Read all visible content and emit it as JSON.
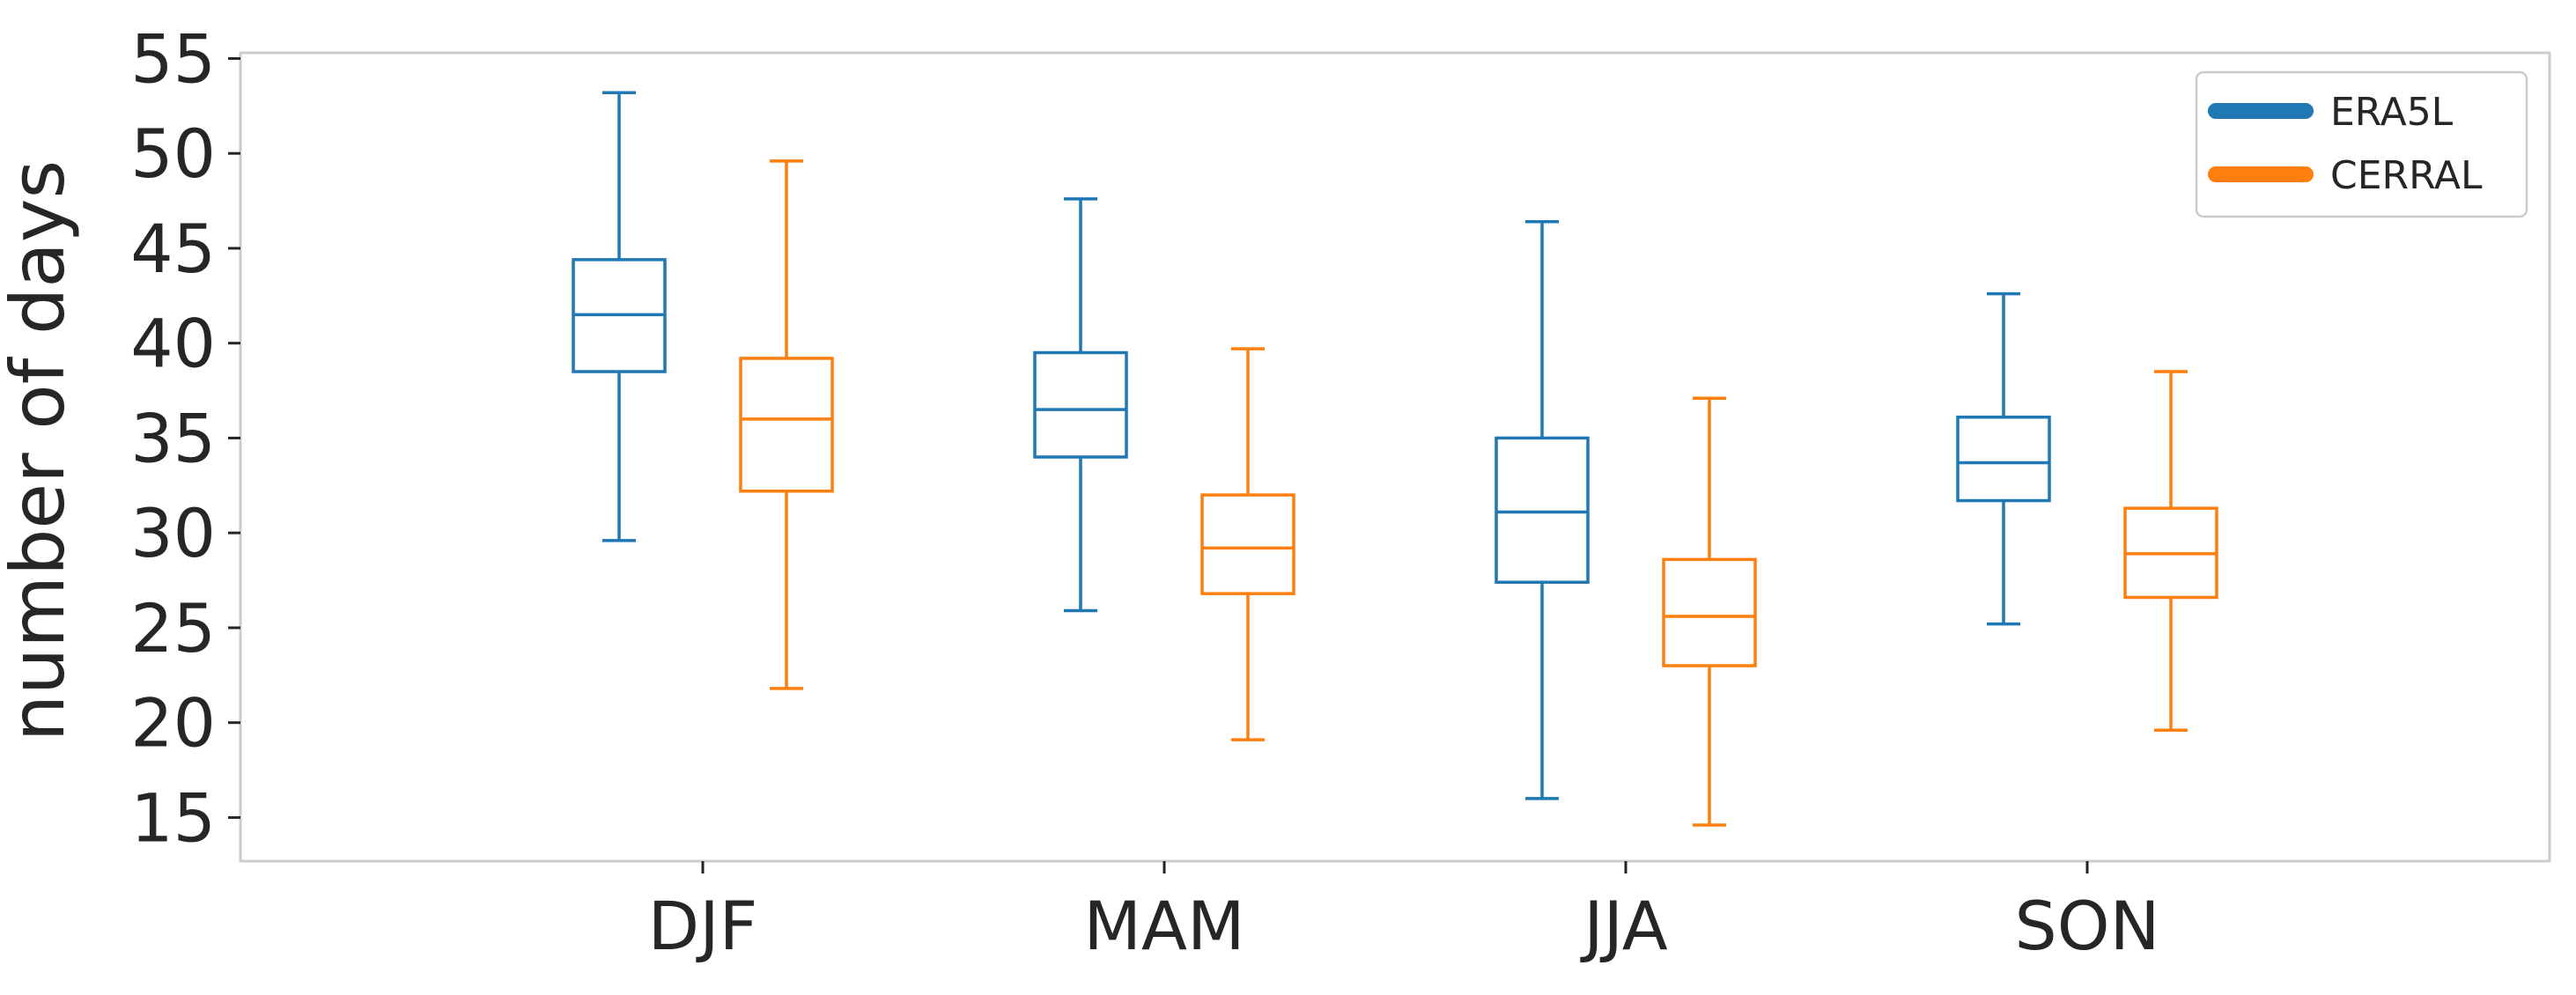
{
  "chart_data": {
    "type": "boxplot",
    "title": "",
    "xlabel": "",
    "ylabel": "number of days",
    "ylim": [
      12.7,
      55.3
    ],
    "yticks": [
      15,
      20,
      25,
      30,
      35,
      40,
      45,
      50,
      55
    ],
    "categories": [
      "DJF",
      "MAM",
      "JJA",
      "SON"
    ],
    "legend_position": "top-right",
    "grid": false,
    "series": [
      {
        "name": "ERA5L",
        "color": "#1f77b4",
        "boxes": [
          {
            "whislo": 29.6,
            "q1": 38.5,
            "med": 41.5,
            "q3": 44.4,
            "whishi": 53.2
          },
          {
            "whislo": 25.9,
            "q1": 34.0,
            "med": 36.5,
            "q3": 39.5,
            "whishi": 47.6
          },
          {
            "whislo": 16.0,
            "q1": 27.4,
            "med": 31.1,
            "q3": 35.0,
            "whishi": 46.4
          },
          {
            "whislo": 25.2,
            "q1": 31.7,
            "med": 33.7,
            "q3": 36.1,
            "whishi": 42.6
          }
        ]
      },
      {
        "name": "CERRAL",
        "color": "#ff7f0e",
        "boxes": [
          {
            "whislo": 21.8,
            "q1": 32.2,
            "med": 36.0,
            "q3": 39.2,
            "whishi": 49.6
          },
          {
            "whislo": 19.1,
            "q1": 26.8,
            "med": 29.2,
            "q3": 32.0,
            "whishi": 39.7
          },
          {
            "whislo": 14.6,
            "q1": 23.0,
            "med": 25.6,
            "q3": 28.6,
            "whishi": 37.1
          },
          {
            "whislo": 19.6,
            "q1": 26.6,
            "med": 28.9,
            "q3": 31.3,
            "whishi": 38.5
          }
        ]
      }
    ]
  }
}
